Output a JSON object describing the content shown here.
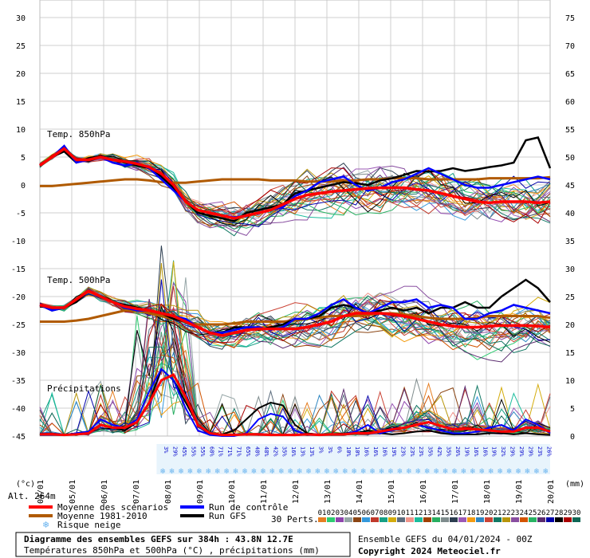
{
  "chart_data": {
    "type": "line",
    "x_ticks": [
      "04/01",
      "05/01",
      "06/01",
      "07/01",
      "08/01",
      "09/01",
      "10/01",
      "11/01",
      "12/01",
      "13/01",
      "14/01",
      "15/01",
      "16/01",
      "17/01",
      "18/01",
      "19/01",
      "20/01"
    ],
    "y_left_ticks": [
      30,
      25,
      20,
      15,
      10,
      5,
      0,
      -5,
      -10,
      -15,
      -20,
      -25,
      -30,
      -35,
      -40,
      -45
    ],
    "y_right_ticks": [
      75,
      70,
      65,
      60,
      55,
      50,
      45,
      40,
      35,
      30,
      25,
      20,
      15,
      10,
      5,
      0
    ],
    "y_left_range": [
      -45,
      30
    ],
    "y_right_range": [
      0,
      75
    ],
    "left_unit": "(°c)",
    "right_unit": "(mm)",
    "panel_labels": {
      "t850": "Temp. 850hPa",
      "t500": "Temp. 500hPa",
      "precip": "Précipitations"
    },
    "altitude": "Alt. 264m",
    "perts_label": "30 Perts.",
    "member_numbers": [
      "01",
      "02",
      "03",
      "04",
      "05",
      "06",
      "07",
      "08",
      "09",
      "10",
      "11",
      "12",
      "13",
      "14",
      "15",
      "16",
      "17",
      "18",
      "19",
      "20",
      "21",
      "22",
      "23",
      "24",
      "25",
      "26",
      "27",
      "28",
      "29",
      "30"
    ],
    "member_colors": [
      "#e67e22",
      "#2ecc71",
      "#8e44ad",
      "#95a5a6",
      "#8b4513",
      "#3498db",
      "#c0392b",
      "#16a085",
      "#d4ac0d",
      "#5d6d7e",
      "#f1948a",
      "#1abc9c",
      "#a04000",
      "#27ae60",
      "#7f8c8d",
      "#2c3e50",
      "#9b59b6",
      "#f39c12",
      "#2e86c1",
      "#cb4335",
      "#117864",
      "#b7950b",
      "#884ea0",
      "#d35400",
      "#28b463",
      "#5b2c6f",
      "#0000aa",
      "#000000",
      "#aa0000",
      "#0e6655"
    ],
    "snow_risk_percent": [
      "3%",
      "29%",
      "45%",
      "55%",
      "55%",
      "68%",
      "71%",
      "71%",
      "71%",
      "65%",
      "48%",
      "48%",
      "42%",
      "35%",
      "16%",
      "13%",
      "13%",
      "3%",
      "3%",
      "6%",
      "10%",
      "10%",
      "16%",
      "16%",
      "16%",
      "19%",
      "23%",
      "23%",
      "23%",
      "35%",
      "42%",
      "35%",
      "26%",
      "19%",
      "16%",
      "16%",
      "19%",
      "32%",
      "29%",
      "29%",
      "29%",
      "23%",
      "26%"
    ],
    "legend": [
      {
        "label": "Moyenne des scénarios",
        "color": "#ff0000"
      },
      {
        "label": "Moyenne 1981-2010",
        "color": "#b05a00"
      },
      {
        "label": "Risque neige",
        "color": "#66b2ee"
      },
      {
        "label": "Run de contrôle",
        "color": "#0000ff"
      },
      {
        "label": "Run GFS",
        "color": "#000000"
      }
    ],
    "t850_mean": [
      3.5,
      5,
      6.5,
      4.5,
      4.5,
      5,
      4.5,
      4.2,
      3.8,
      3.2,
      2,
      0,
      -3,
      -4.5,
      -5,
      -5.5,
      -6,
      -5.5,
      -5,
      -4.5,
      -3.5,
      -2.5,
      -1.8,
      -1.5,
      -1.2,
      -1,
      -0.8,
      -0.6,
      -0.5,
      -0.5,
      -0.5,
      -0.8,
      -1,
      -1.5,
      -2,
      -2.5,
      -3,
      -3.2,
      -3,
      -3,
      -3,
      -3.2,
      -3
    ],
    "t850_climate": [
      -0.2,
      -0.2,
      0,
      0.2,
      0.4,
      0.6,
      0.8,
      1,
      1,
      0.8,
      0.5,
      0.4,
      0.4,
      0.6,
      0.8,
      1,
      1,
      1,
      1,
      0.8,
      0.8,
      0.8,
      0.6,
      0.6,
      0.6,
      0.8,
      0.8,
      1,
      1,
      1.2,
      1.2,
      1.2,
      1,
      1,
      1,
      1,
      1,
      1.2,
      1.2,
      1.2,
      1.2,
      1.2,
      1.4
    ],
    "t850_control": [
      3.5,
      5,
      7,
      4,
      4.5,
      5,
      4,
      3.5,
      4,
      3,
      1,
      -1,
      -3,
      -4.5,
      -5,
      -5.5,
      -5.8,
      -5.5,
      -5,
      -4.5,
      -4,
      -2,
      -1,
      0.5,
      1,
      1.5,
      0,
      -1,
      -0.5,
      0.5,
      1,
      2,
      3,
      2,
      1,
      0,
      -0.5,
      -0.5,
      0,
      0.5,
      1,
      1.5,
      1
    ],
    "t850_gfs": [
      3.5,
      5,
      6,
      4,
      4.8,
      5.2,
      4.5,
      4,
      3.5,
      3,
      1.5,
      -0.5,
      -3,
      -5,
      -5.5,
      -6,
      -6.5,
      -5,
      -4.5,
      -4,
      -3.5,
      -1.5,
      -1,
      -0.5,
      0,
      0.5,
      0.3,
      0,
      0.8,
      1.2,
      1.8,
      2.5,
      2.4,
      2.5,
      3,
      2.5,
      2.8,
      3.2,
      3.5,
      4,
      8,
      8.5,
      3
    ],
    "t500_mean": [
      -21.5,
      -22,
      -22,
      -20.5,
      -19,
      -20,
      -21,
      -21.8,
      -22.2,
      -22.5,
      -23,
      -23.5,
      -24.5,
      -25.5,
      -26.5,
      -27,
      -26.5,
      -26,
      -25.8,
      -25.8,
      -25.8,
      -25.8,
      -25.5,
      -25,
      -24.5,
      -23.5,
      -23,
      -23,
      -23,
      -23.2,
      -23.5,
      -24,
      -24.5,
      -25,
      -25.3,
      -25.5,
      -25.5,
      -25.3,
      -25.2,
      -25.2,
      -25.2,
      -25.3,
      -25.5
    ],
    "t500_climate": [
      -24.5,
      -24.5,
      -24.5,
      -24.3,
      -24,
      -23.5,
      -23,
      -22.5,
      -22.5,
      -23,
      -23.5,
      -24,
      -24.5,
      -25,
      -25,
      -25,
      -24.8,
      -24.5,
      -24.5,
      -24.5,
      -24.5,
      -24.3,
      -24,
      -23.8,
      -23.5,
      -23.5,
      -23.5,
      -23.3,
      -23,
      -23,
      -23.2,
      -23.5,
      -23.8,
      -24,
      -24,
      -24,
      -23.8,
      -23.5,
      -23.5,
      -23.5,
      -23.5,
      -23.5,
      -23.8
    ],
    "t500_control": [
      -21.5,
      -22.5,
      -22,
      -20.5,
      -19,
      -20,
      -21,
      -22,
      -22.5,
      -22.5,
      -23,
      -23.5,
      -24,
      -25.5,
      -26.5,
      -26.5,
      -26,
      -25.5,
      -25.5,
      -26,
      -25.5,
      -24,
      -24,
      -23,
      -21.5,
      -20.5,
      -22,
      -23,
      -22,
      -21,
      -21,
      -20.5,
      -22,
      -21.5,
      -22,
      -24,
      -24,
      -23,
      -22.5,
      -21.5,
      -22,
      -22.5,
      -23
    ],
    "t500_gfs": [
      -21.5,
      -22.5,
      -22,
      -21,
      -19,
      -20,
      -21,
      -21.5,
      -22,
      -22.5,
      -23,
      -24,
      -24.5,
      -25.5,
      -26.5,
      -26.5,
      -25.5,
      -25.5,
      -26,
      -25.5,
      -25,
      -24,
      -24,
      -23.5,
      -22,
      -21.5,
      -22,
      -23,
      -22.5,
      -22,
      -22.5,
      -22,
      -23,
      -22,
      -22,
      -21,
      -22,
      -22,
      -20,
      -18.5,
      -17,
      -18.5,
      -21
    ],
    "precip_mean_mm": [
      0.3,
      0.3,
      0.2,
      0.3,
      0.5,
      2,
      1.5,
      1.5,
      2.5,
      6,
      10,
      11,
      7,
      2,
      0.5,
      0.2,
      0.2,
      0.3,
      0.3,
      0.2,
      0.2,
      0.2,
      0.3,
      0.2,
      0.3,
      0.3,
      0.5,
      0.5,
      0.8,
      1.2,
      1.5,
      2,
      2.5,
      1.8,
      1.2,
      1.3,
      1.2,
      1,
      0.8,
      0.8,
      1.5,
      1.5,
      0.8
    ],
    "precip_control_mm": [
      0.2,
      0.2,
      0.2,
      0.5,
      0.8,
      3,
      2,
      1.5,
      3,
      8,
      12,
      10,
      5,
      1,
      0.2,
      0,
      0,
      0.5,
      3,
      4,
      3.5,
      1,
      0.2,
      0.2,
      0.3,
      0.3,
      0.8,
      2,
      0.5,
      1,
      1.5,
      2,
      1.5,
      1,
      0.5,
      0.5,
      0.8,
      1.5,
      2,
      1,
      3,
      2,
      0.5
    ],
    "precip_gfs_mm": [
      0.2,
      0.2,
      0.2,
      0.5,
      0.8,
      2,
      1.5,
      1,
      2.5,
      6,
      12,
      10,
      6,
      2,
      0.5,
      0.3,
      1,
      3,
      5,
      6,
      5.5,
      2,
      0.5,
      0.2,
      0.2,
      0.2,
      0.5,
      1,
      0.5,
      0.3,
      0.5,
      0.8,
      1,
      0.5,
      0.3,
      0.3,
      0.3,
      0.5,
      0.5,
      0.3,
      0.5,
      0.3,
      0.2
    ]
  },
  "footer": {
    "title_line1": "Diagramme des ensembles GEFS sur 384h : 43.8N 12.7E",
    "title_line2": "Températures 850hPa et 500hPa (°C) , précipitations (mm)",
    "run_info": "Ensemble GEFS du 04/01/2024 - 00Z",
    "copyright": "Copyright 2024 Meteociel.fr"
  }
}
